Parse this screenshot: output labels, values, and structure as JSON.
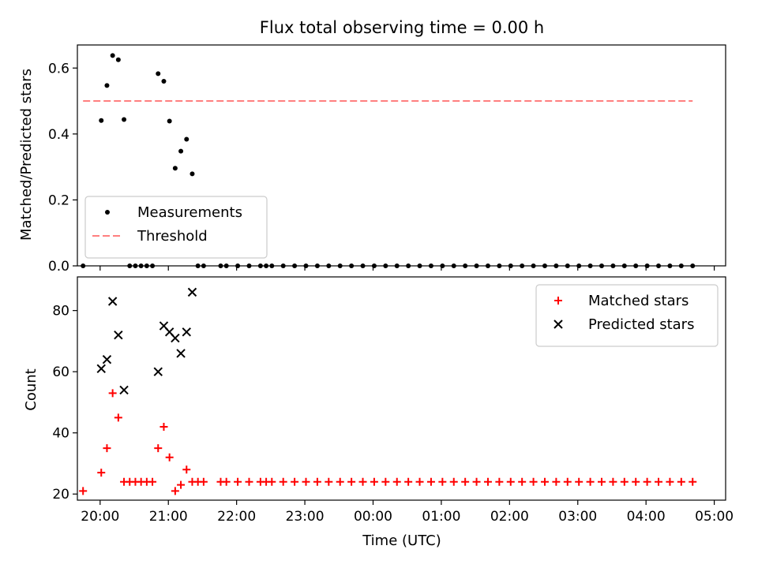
{
  "figure": {
    "title": "Flux total observing time = 0.00 h"
  },
  "chart_data": [
    {
      "type": "scatter",
      "title": "Flux total observing time = 0.00 h",
      "xlabel": "",
      "ylabel": "Matched/Predicted stars",
      "xlim": [
        "19:40",
        "05:10"
      ],
      "ylim": [
        0,
        0.67
      ],
      "yticks": [
        "0.0",
        "0.2",
        "0.4",
        "0.6"
      ],
      "legend": {
        "placement": "lower-left",
        "entries": [
          "Measurements",
          "Threshold"
        ]
      },
      "series": [
        {
          "name": "Measurements",
          "marker": "dot",
          "color": "#000000",
          "points": [
            [
              "19:45",
              0.0
            ],
            [
              "20:01",
              0.441
            ],
            [
              "20:06",
              0.547
            ],
            [
              "20:11",
              0.638
            ],
            [
              "20:16",
              0.625
            ],
            [
              "20:21",
              0.444
            ],
            [
              "20:26",
              0.0
            ],
            [
              "20:31",
              0.0
            ],
            [
              "20:36",
              0.0
            ],
            [
              "20:41",
              0.0
            ],
            [
              "20:46",
              0.0
            ],
            [
              "20:51",
              0.583
            ],
            [
              "20:56",
              0.56
            ],
            [
              "21:01",
              0.439
            ],
            [
              "21:06",
              0.296
            ],
            [
              "21:11",
              0.348
            ],
            [
              "21:16",
              0.384
            ],
            [
              "21:21",
              0.279
            ],
            [
              "21:26",
              0.0
            ],
            [
              "21:31",
              0.0
            ],
            [
              "21:46",
              0.0
            ],
            [
              "21:51",
              0.0
            ],
            [
              "22:01",
              0.0
            ],
            [
              "22:11",
              0.0
            ],
            [
              "22:21",
              0.0
            ],
            [
              "22:26",
              0.0
            ],
            [
              "22:31",
              0.0
            ],
            [
              "22:41",
              0.0
            ],
            [
              "22:51",
              0.0
            ],
            [
              "23:01",
              0.0
            ],
            [
              "23:11",
              0.0
            ],
            [
              "23:21",
              0.0
            ],
            [
              "23:31",
              0.0
            ],
            [
              "23:41",
              0.0
            ],
            [
              "23:51",
              0.0
            ],
            [
              "00:01",
              0.0
            ],
            [
              "00:11",
              0.0
            ],
            [
              "00:21",
              0.0
            ],
            [
              "00:31",
              0.0
            ],
            [
              "00:41",
              0.0
            ],
            [
              "00:51",
              0.0
            ],
            [
              "01:01",
              0.0
            ],
            [
              "01:11",
              0.0
            ],
            [
              "01:21",
              0.0
            ],
            [
              "01:31",
              0.0
            ],
            [
              "01:41",
              0.0
            ],
            [
              "01:51",
              0.0
            ],
            [
              "02:01",
              0.0
            ],
            [
              "02:11",
              0.0
            ],
            [
              "02:21",
              0.0
            ],
            [
              "02:31",
              0.0
            ],
            [
              "02:41",
              0.0
            ],
            [
              "02:51",
              0.0
            ],
            [
              "03:01",
              0.0
            ],
            [
              "03:11",
              0.0
            ],
            [
              "03:21",
              0.0
            ],
            [
              "03:31",
              0.0
            ],
            [
              "03:41",
              0.0
            ],
            [
              "03:51",
              0.0
            ],
            [
              "04:01",
              0.0
            ],
            [
              "04:11",
              0.0
            ],
            [
              "04:21",
              0.0
            ],
            [
              "04:31",
              0.0
            ],
            [
              "04:41",
              0.0
            ]
          ]
        },
        {
          "name": "Threshold",
          "style": "dashed",
          "color": "#ff7f7f",
          "points": [
            [
              "19:45",
              0.5
            ],
            [
              "04:41",
              0.5
            ]
          ]
        }
      ]
    },
    {
      "type": "scatter",
      "title": "",
      "xlabel": "Time (UTC)",
      "ylabel": "Count",
      "xlim": [
        "19:40",
        "05:10"
      ],
      "ylim": [
        18,
        91
      ],
      "xticks": [
        "20:00",
        "21:00",
        "22:00",
        "23:00",
        "00:00",
        "01:00",
        "02:00",
        "03:00",
        "04:00",
        "05:00"
      ],
      "yticks": [
        "20",
        "40",
        "60",
        "80"
      ],
      "legend": {
        "placement": "top-right",
        "entries": [
          "Matched stars",
          "Predicted stars"
        ]
      },
      "series": [
        {
          "name": "Matched stars",
          "marker": "plus",
          "color": "#ff0000",
          "points": [
            [
              "19:45",
              21
            ],
            [
              "20:01",
              27
            ],
            [
              "20:06",
              35
            ],
            [
              "20:11",
              53
            ],
            [
              "20:16",
              45
            ],
            [
              "20:21",
              24
            ],
            [
              "20:26",
              24
            ],
            [
              "20:31",
              24
            ],
            [
              "20:36",
              24
            ],
            [
              "20:41",
              24
            ],
            [
              "20:46",
              24
            ],
            [
              "20:51",
              35
            ],
            [
              "20:56",
              42
            ],
            [
              "21:01",
              32
            ],
            [
              "21:06",
              21
            ],
            [
              "21:11",
              23
            ],
            [
              "21:16",
              28
            ],
            [
              "21:21",
              24
            ],
            [
              "21:26",
              24
            ],
            [
              "21:31",
              24
            ],
            [
              "21:46",
              24
            ],
            [
              "21:51",
              24
            ],
            [
              "22:01",
              24
            ],
            [
              "22:11",
              24
            ],
            [
              "22:21",
              24
            ],
            [
              "22:26",
              24
            ],
            [
              "22:31",
              24
            ],
            [
              "22:41",
              24
            ],
            [
              "22:51",
              24
            ],
            [
              "23:01",
              24
            ],
            [
              "23:11",
              24
            ],
            [
              "23:21",
              24
            ],
            [
              "23:31",
              24
            ],
            [
              "23:41",
              24
            ],
            [
              "23:51",
              24
            ],
            [
              "00:01",
              24
            ],
            [
              "00:11",
              24
            ],
            [
              "00:21",
              24
            ],
            [
              "00:31",
              24
            ],
            [
              "00:41",
              24
            ],
            [
              "00:51",
              24
            ],
            [
              "01:01",
              24
            ],
            [
              "01:11",
              24
            ],
            [
              "01:21",
              24
            ],
            [
              "01:31",
              24
            ],
            [
              "01:41",
              24
            ],
            [
              "01:51",
              24
            ],
            [
              "02:01",
              24
            ],
            [
              "02:11",
              24
            ],
            [
              "02:21",
              24
            ],
            [
              "02:31",
              24
            ],
            [
              "02:41",
              24
            ],
            [
              "02:51",
              24
            ],
            [
              "03:01",
              24
            ],
            [
              "03:11",
              24
            ],
            [
              "03:21",
              24
            ],
            [
              "03:31",
              24
            ],
            [
              "03:41",
              24
            ],
            [
              "03:51",
              24
            ],
            [
              "04:01",
              24
            ],
            [
              "04:11",
              24
            ],
            [
              "04:21",
              24
            ],
            [
              "04:31",
              24
            ],
            [
              "04:41",
              24
            ]
          ]
        },
        {
          "name": "Predicted stars",
          "marker": "x",
          "color": "#000000",
          "points": [
            [
              "20:01",
              61
            ],
            [
              "20:06",
              64
            ],
            [
              "20:11",
              83
            ],
            [
              "20:16",
              72
            ],
            [
              "20:21",
              54
            ],
            [
              "20:51",
              60
            ],
            [
              "20:56",
              75
            ],
            [
              "21:01",
              73
            ],
            [
              "21:06",
              71
            ],
            [
              "21:11",
              66
            ],
            [
              "21:16",
              73
            ],
            [
              "21:21",
              86
            ]
          ]
        }
      ]
    }
  ]
}
